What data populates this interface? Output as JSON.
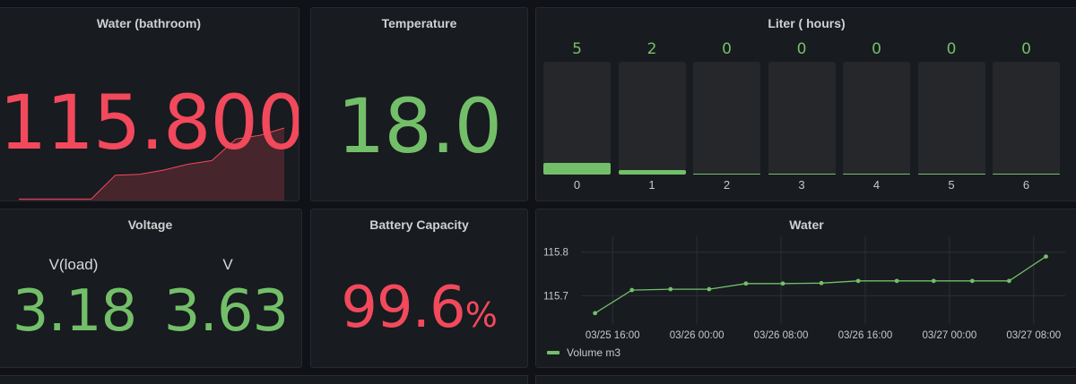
{
  "panels": {
    "water_bathroom": {
      "title": "Water (bathroom)",
      "value": "115.800",
      "spark": [
        0.02,
        0.02,
        0.02,
        0.02,
        0.35,
        0.36,
        0.42,
        0.5,
        0.55,
        0.85,
        0.9,
        1.0
      ]
    },
    "temperature": {
      "title": "Temperature",
      "value": "18.0"
    },
    "liter_hours": {
      "title": "Liter ( hours)",
      "bars": [
        {
          "label": "0",
          "value": "5",
          "amount": 5
        },
        {
          "label": "1",
          "value": "2",
          "amount": 2
        },
        {
          "label": "2",
          "value": "0",
          "amount": 0
        },
        {
          "label": "3",
          "value": "0",
          "amount": 0
        },
        {
          "label": "4",
          "value": "0",
          "amount": 0
        },
        {
          "label": "5",
          "value": "0",
          "amount": 0
        },
        {
          "label": "6",
          "value": "0",
          "amount": 0
        }
      ],
      "max": 50
    },
    "voltage": {
      "title": "Voltage",
      "load_label": "V(load)",
      "load_value": "3.18",
      "v_label": "V",
      "v_value": "3.63"
    },
    "battery": {
      "title": "Battery Capacity",
      "value": "99.6",
      "unit": "%"
    },
    "water": {
      "title": "Water"
    }
  },
  "chart_data": {
    "type": "line",
    "title": "Water",
    "x": [
      "03/25 14:20",
      "03/25 17:50",
      "03/25 21:30",
      "03/26 01:10",
      "03/26 04:40",
      "03/26 08:10",
      "03/26 11:50",
      "03/26 15:20",
      "03/26 19:00",
      "03/26 22:30",
      "03/27 02:10",
      "03/27 05:40",
      "03/27 09:10"
    ],
    "series": [
      {
        "name": "Volume m3",
        "values": [
          115.66,
          115.713,
          115.715,
          115.715,
          115.728,
          115.728,
          115.729,
          115.734,
          115.734,
          115.734,
          115.734,
          115.734,
          115.79
        ]
      }
    ],
    "xticks": [
      "03/25 16:00",
      "03/26 00:00",
      "03/26 08:00",
      "03/26 16:00",
      "03/27 00:00",
      "03/27 08:00"
    ],
    "yticks": [
      "115.8",
      "115.7"
    ],
    "ylim": [
      115.635,
      115.82
    ],
    "legend": "bottom-left",
    "color": "#73bf69"
  },
  "colors": {
    "red": "#f2495c",
    "green": "#73bf69",
    "panel": "#181b1f"
  }
}
